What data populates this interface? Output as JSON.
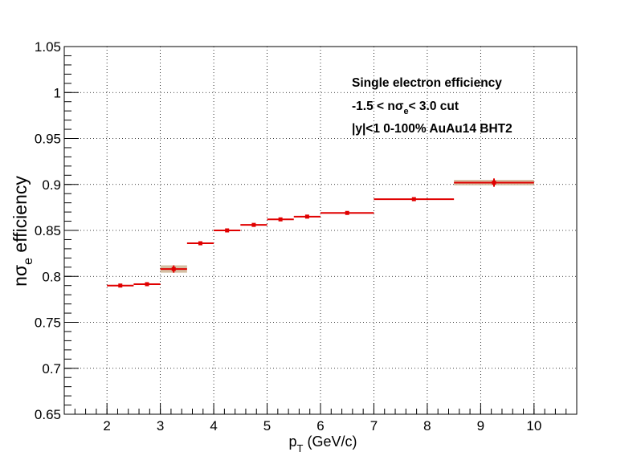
{
  "chart_data": {
    "type": "scatter",
    "title": "",
    "xlabel": {
      "main": "p",
      "sub": "T",
      "rest": " (GeV/c)"
    },
    "ylabel": {
      "pre": "nσ",
      "sub": "e",
      "rest": " efficiency"
    },
    "xlim": [
      1.2,
      10.8
    ],
    "ylim": [
      0.65,
      1.05
    ],
    "x_ticks": [
      "2",
      "3",
      "4",
      "5",
      "6",
      "7",
      "8",
      "9",
      "10"
    ],
    "y_ticks": [
      "0.65",
      "0.7",
      "0.75",
      "0.8",
      "0.85",
      "0.9",
      "0.95",
      "1",
      "1.05"
    ],
    "grid": true,
    "annotations": [
      {
        "id": "line1",
        "text": "Single electron efficiency"
      },
      {
        "id": "line2",
        "pre": "-1.5 < nσ",
        "sub": "e",
        "post": "< 3.0 cut"
      },
      {
        "id": "line3",
        "text": "|y|<1  0-100%  AuAu14 BHT2"
      }
    ],
    "series": [
      {
        "color": "#e00000",
        "points": [
          {
            "x": 2.25,
            "xlo": 2.0,
            "xhi": 2.5,
            "y": 0.79,
            "yerr": 0.0015,
            "sys": 0.0
          },
          {
            "x": 2.75,
            "xlo": 2.5,
            "xhi": 3.0,
            "y": 0.7915,
            "yerr": 0.0015,
            "sys": 0.0
          },
          {
            "x": 3.25,
            "xlo": 3.0,
            "xhi": 3.5,
            "y": 0.808,
            "yerr": 0.004,
            "sys": 0.004
          },
          {
            "x": 3.75,
            "xlo": 3.5,
            "xhi": 4.0,
            "y": 0.836,
            "yerr": 0.0015,
            "sys": 0.0
          },
          {
            "x": 4.25,
            "xlo": 4.0,
            "xhi": 4.5,
            "y": 0.85,
            "yerr": 0.0015,
            "sys": 0.0
          },
          {
            "x": 4.75,
            "xlo": 4.5,
            "xhi": 5.0,
            "y": 0.856,
            "yerr": 0.0015,
            "sys": 0.0
          },
          {
            "x": 5.25,
            "xlo": 5.0,
            "xhi": 5.5,
            "y": 0.862,
            "yerr": 0.0015,
            "sys": 0.0
          },
          {
            "x": 5.75,
            "xlo": 5.5,
            "xhi": 6.0,
            "y": 0.865,
            "yerr": 0.0015,
            "sys": 0.0
          },
          {
            "x": 6.5,
            "xlo": 6.0,
            "xhi": 7.0,
            "y": 0.869,
            "yerr": 0.0015,
            "sys": 0.0
          },
          {
            "x": 7.75,
            "xlo": 7.0,
            "xhi": 8.5,
            "y": 0.884,
            "yerr": 0.0015,
            "sys": 0.0
          },
          {
            "x": 9.25,
            "xlo": 8.5,
            "xhi": 10.0,
            "y": 0.902,
            "yerr": 0.0045,
            "sys": 0.003
          }
        ]
      }
    ]
  }
}
